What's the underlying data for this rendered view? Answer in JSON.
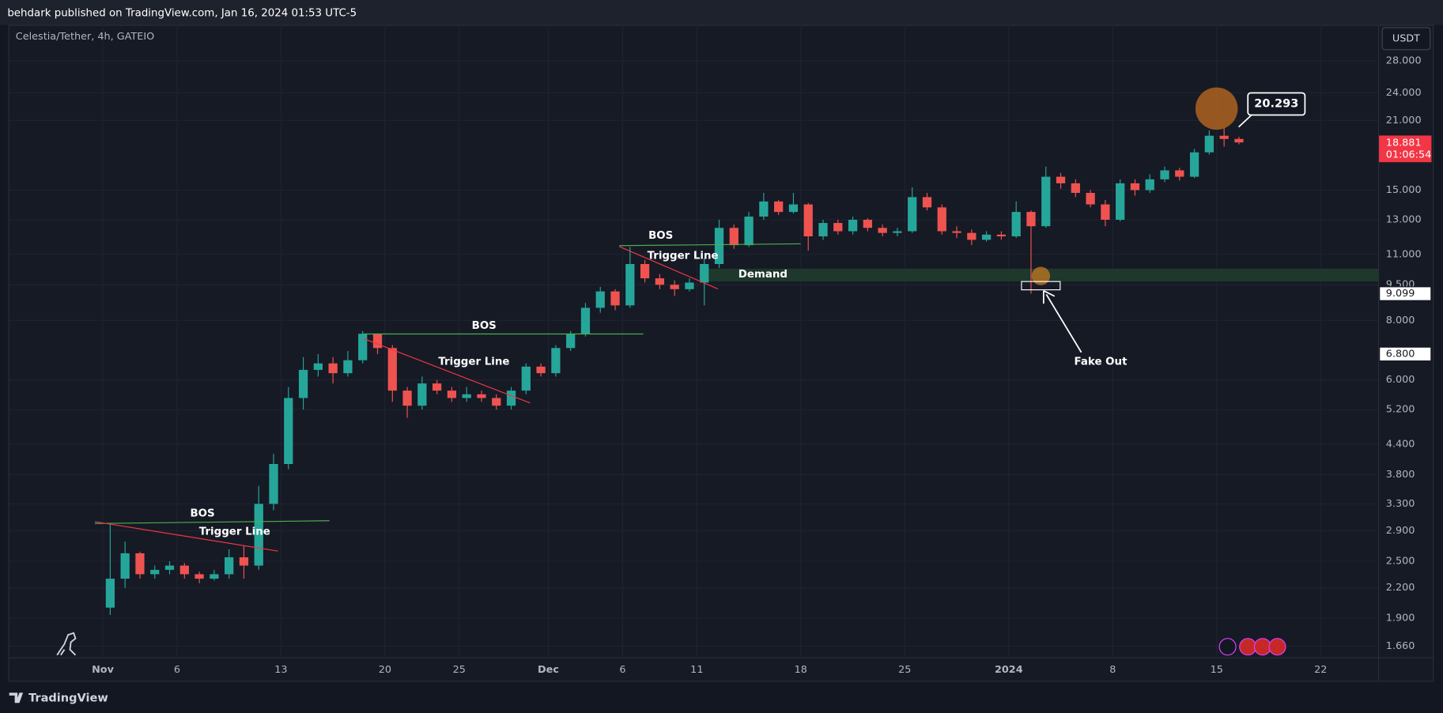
{
  "header": {
    "title": "behdark published on TradingView.com, Jan 16, 2024 01:53 UTC-5",
    "brand": "TradingView"
  },
  "chart_data": {
    "type": "candlestick",
    "symbol": "Celestia/Tether, 4h, GATEIO",
    "currency": "USDT",
    "log_scale": true,
    "grid": true,
    "up_color": "#26a69a",
    "down_color": "#ef5350",
    "xlim": [
      -6.3,
      85.9
    ],
    "xticks": [
      {
        "value": 0,
        "label": "Nov"
      },
      {
        "value": 5,
        "label": "6"
      },
      {
        "value": 12,
        "label": "13"
      },
      {
        "value": 19,
        "label": "20"
      },
      {
        "value": 24,
        "label": "25"
      },
      {
        "value": 30,
        "label": "Dec"
      },
      {
        "value": 35,
        "label": "6"
      },
      {
        "value": 40,
        "label": "11"
      },
      {
        "value": 47,
        "label": "18"
      },
      {
        "value": 54,
        "label": "25"
      },
      {
        "value": 61,
        "label": "2024"
      },
      {
        "value": 68,
        "label": "8"
      },
      {
        "value": 75,
        "label": "15"
      },
      {
        "value": 82,
        "label": "22"
      }
    ],
    "ylim": [
      1.57,
      33.3
    ],
    "yticks": [
      {
        "value": 28,
        "label": "28.000"
      },
      {
        "value": 24,
        "label": "24.000"
      },
      {
        "value": 21,
        "label": "21.000"
      },
      {
        "value": 15,
        "label": "15.000"
      },
      {
        "value": 13,
        "label": "13.000"
      },
      {
        "value": 11,
        "label": "11.000"
      },
      {
        "value": 9.5,
        "label": "9.500"
      },
      {
        "value": 8,
        "label": "8.000"
      },
      {
        "value": 6,
        "label": "6.000"
      },
      {
        "value": 5.2,
        "label": "5.200"
      },
      {
        "value": 4.4,
        "label": "4.400"
      },
      {
        "value": 3.8,
        "label": "3.800"
      },
      {
        "value": 3.3,
        "label": "3.300"
      },
      {
        "value": 2.9,
        "label": "2.900"
      },
      {
        "value": 2.5,
        "label": "2.500"
      },
      {
        "value": 2.2,
        "label": "2.200"
      },
      {
        "value": 1.9,
        "label": "1.900"
      },
      {
        "value": 1.66,
        "label": "1.660"
      }
    ],
    "x": [
      0.5,
      1.5,
      2.5,
      3.5,
      4.5,
      5.5,
      6.5,
      7.5,
      8.5,
      9.5,
      10.5,
      11.5,
      12.5,
      13.5,
      14.5,
      15.5,
      16.5,
      17.5,
      18.5,
      19.5,
      20.5,
      21.5,
      22.5,
      23.5,
      24.5,
      25.5,
      26.5,
      27.5,
      28.5,
      29.5,
      30.5,
      31.5,
      32.5,
      33.5,
      34.5,
      35.5,
      36.5,
      37.5,
      38.5,
      39.5,
      40.5,
      41.5,
      42.5,
      43.5,
      44.5,
      45.5,
      46.5,
      47.5,
      48.5,
      49.5,
      50.5,
      51.5,
      52.5,
      53.5,
      54.5,
      55.5,
      56.5,
      57.5,
      58.5,
      59.5,
      60.5,
      61.5,
      62.5,
      63.5,
      64.5,
      65.5,
      66.5,
      67.5,
      68.5,
      69.5,
      70.5,
      71.5,
      72.5,
      73.5,
      74.5,
      75.5,
      76.5
    ],
    "open": [
      2.0,
      2.3,
      2.6,
      2.35,
      2.4,
      2.45,
      2.35,
      2.3,
      2.35,
      2.55,
      2.45,
      3.3,
      4.0,
      5.5,
      6.3,
      6.5,
      6.2,
      6.6,
      7.5,
      7.0,
      5.7,
      5.3,
      5.9,
      5.7,
      5.5,
      5.6,
      5.5,
      5.3,
      5.7,
      6.4,
      6.2,
      7.0,
      7.5,
      8.5,
      9.2,
      8.6,
      10.5,
      9.8,
      9.5,
      9.3,
      9.6,
      10.5,
      12.5,
      11.5,
      13.2,
      14.2,
      13.5,
      14.0,
      12.0,
      12.8,
      12.3,
      13.0,
      12.5,
      12.2,
      12.3,
      14.5,
      13.8,
      12.3,
      12.2,
      11.8,
      12.1,
      12.0,
      13.5,
      12.6,
      16.0,
      15.5,
      14.8,
      14.0,
      13.0,
      15.5,
      15.0,
      15.8,
      16.5,
      16.0,
      18.0,
      19.5,
      19.2
    ],
    "high": [
      3.0,
      2.75,
      2.62,
      2.45,
      2.5,
      2.48,
      2.38,
      2.4,
      2.65,
      2.7,
      3.6,
      4.2,
      5.8,
      6.7,
      6.8,
      6.7,
      6.9,
      7.6,
      7.5,
      7.1,
      5.8,
      6.1,
      6.0,
      5.8,
      5.8,
      5.7,
      5.6,
      5.8,
      6.5,
      6.5,
      7.1,
      7.6,
      8.7,
      9.4,
      9.3,
      11.4,
      10.7,
      10.0,
      9.7,
      9.8,
      10.8,
      13.0,
      12.7,
      13.5,
      14.8,
      14.3,
      14.8,
      14.1,
      13.0,
      13.0,
      13.2,
      13.1,
      12.7,
      12.5,
      15.2,
      14.8,
      14.0,
      12.6,
      12.4,
      12.3,
      12.3,
      14.2,
      13.6,
      16.8,
      16.3,
      15.8,
      15.0,
      14.3,
      15.8,
      15.8,
      16.2,
      16.8,
      16.7,
      18.3,
      20.0,
      20.3,
      19.4
    ],
    "low": [
      1.93,
      2.2,
      2.3,
      2.3,
      2.35,
      2.3,
      2.25,
      2.28,
      2.3,
      2.3,
      2.4,
      3.2,
      3.9,
      5.2,
      6.1,
      5.9,
      6.1,
      6.5,
      6.8,
      5.4,
      5.0,
      5.2,
      5.6,
      5.4,
      5.4,
      5.4,
      5.2,
      5.2,
      5.6,
      6.1,
      6.1,
      6.9,
      7.4,
      8.3,
      8.4,
      8.5,
      9.6,
      9.3,
      9.0,
      9.2,
      8.6,
      10.3,
      11.3,
      11.4,
      13.0,
      13.3,
      13.4,
      11.2,
      11.8,
      12.1,
      12.1,
      12.3,
      12.0,
      12.0,
      12.2,
      13.6,
      12.1,
      11.9,
      11.5,
      11.7,
      11.8,
      11.9,
      9.1,
      12.5,
      15.1,
      14.5,
      13.8,
      12.6,
      12.9,
      14.6,
      14.8,
      15.6,
      15.7,
      15.9,
      17.8,
      18.5,
      18.7
    ],
    "close": [
      2.3,
      2.6,
      2.35,
      2.4,
      2.45,
      2.35,
      2.3,
      2.35,
      2.55,
      2.45,
      3.3,
      4.0,
      5.5,
      6.3,
      6.5,
      6.2,
      6.6,
      7.5,
      7.0,
      5.7,
      5.3,
      5.9,
      5.7,
      5.5,
      5.6,
      5.5,
      5.3,
      5.7,
      6.4,
      6.2,
      7.0,
      7.5,
      8.5,
      9.2,
      8.6,
      10.5,
      9.8,
      9.5,
      9.3,
      9.6,
      10.5,
      12.5,
      11.5,
      13.2,
      14.2,
      13.5,
      14.0,
      12.0,
      12.8,
      12.3,
      13.0,
      12.5,
      12.2,
      12.3,
      14.5,
      13.8,
      12.3,
      12.2,
      11.8,
      12.1,
      12.0,
      13.5,
      12.6,
      16.0,
      15.5,
      14.8,
      14.0,
      13.0,
      15.5,
      15.0,
      15.8,
      16.5,
      16.0,
      18.0,
      19.5,
      19.2,
      18.881
    ],
    "price_markers": [
      {
        "value": 18.881,
        "countdown": "01:06:54",
        "color": "#f23645"
      },
      {
        "value": 9.099,
        "color": "#ffffff"
      },
      {
        "value": 6.8,
        "label": "6.800",
        "color": "#ffffff"
      }
    ],
    "annotations": {
      "bos": "BOS",
      "trigger": "Trigger Line",
      "demand": "Demand",
      "fake_out": "Fake Out",
      "callout": 20.293
    }
  }
}
